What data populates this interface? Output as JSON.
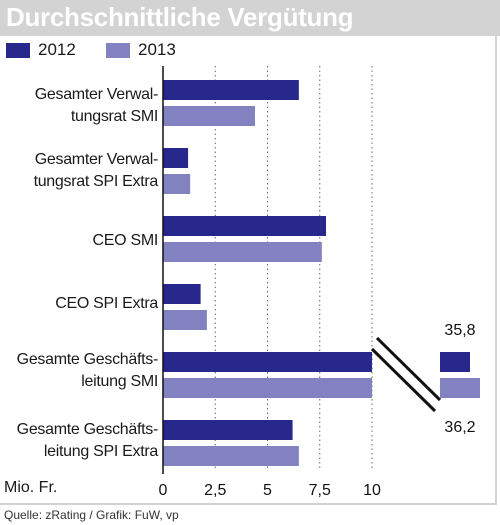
{
  "title": "Durchschnittliche Vergütung",
  "source": "Quelle: zRating / Grafik: FuW, vp",
  "chart_data": {
    "type": "bar",
    "orientation": "horizontal",
    "categories": [
      [
        "Gesamter Verwal-",
        "tungsrat SMI"
      ],
      [
        "Gesamter Verwal-",
        "tungsrat SPI Extra"
      ],
      [
        "CEO SMI"
      ],
      [
        "CEO SPI Extra"
      ],
      [
        "Gesamte Geschäfts-",
        "leitung SMI"
      ],
      [
        "Gesamte Geschäfts-",
        "leitung SPI Extra"
      ]
    ],
    "series": [
      {
        "name": "2012",
        "color": "#28288c",
        "values": [
          6.5,
          1.2,
          7.8,
          1.8,
          35.8,
          6.2
        ]
      },
      {
        "name": "2013",
        "color": "#8282c0",
        "values": [
          4.4,
          1.3,
          7.6,
          2.1,
          36.2,
          6.5
        ]
      }
    ],
    "xlabel": "Mio. Fr.",
    "xticks": [
      "0",
      "2,5",
      "5",
      "7,5",
      "10"
    ],
    "xlim": [
      0,
      10
    ],
    "axis_break": true,
    "break_labels": [
      "35,8",
      "36,2"
    ],
    "grid": "dotted vertical"
  }
}
